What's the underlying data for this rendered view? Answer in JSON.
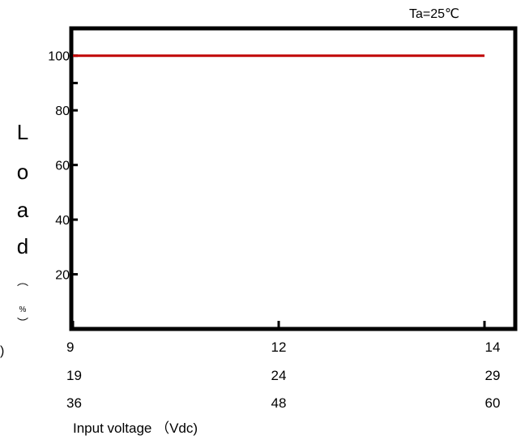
{
  "chart_data": {
    "type": "line",
    "annotation": "Ta=25℃",
    "xlabel": "Input voltage （Vdc)",
    "ylabel": "Load（%）",
    "ylabel_chars": [
      "L",
      "o",
      "a",
      "d",
      "︵",
      "%",
      "︶"
    ],
    "ylabel_stray_char": ")",
    "ylim": [
      0,
      110
    ],
    "y_ticks": [
      20,
      40,
      60,
      80,
      100
    ],
    "y_tick_marks": [
      20,
      40,
      60,
      80,
      100
    ],
    "x_tick_rows": [
      [
        "9",
        "12",
        "14"
      ],
      [
        "19",
        "24",
        "29"
      ],
      [
        "36",
        "48",
        "60"
      ]
    ],
    "x_positions": [
      0,
      0.5,
      1
    ],
    "series": [
      {
        "color": "#c00000",
        "x": [
          0,
          1
        ],
        "y": [
          100,
          100
        ]
      }
    ],
    "grid": false,
    "legend": "none",
    "colors": {
      "axis": "#000000",
      "line": "#c00000"
    }
  }
}
